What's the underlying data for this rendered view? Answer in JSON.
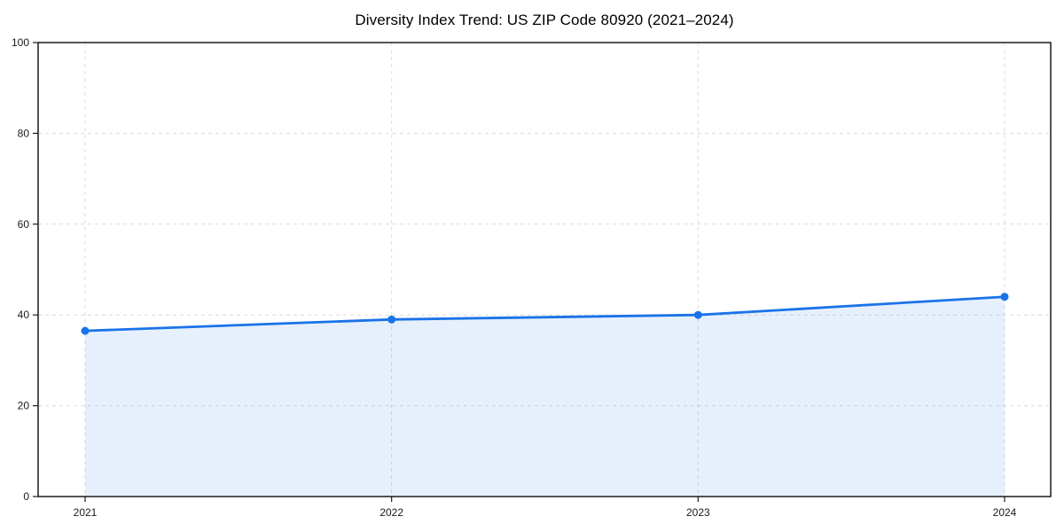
{
  "chart_data": {
    "type": "line",
    "title": "Diversity Index Trend: US ZIP Code 80920 (2021–2024)",
    "categories": [
      "2021",
      "2022",
      "2023",
      "2024"
    ],
    "series": [
      {
        "name": "Diversity Index",
        "values": [
          36.5,
          39,
          40,
          44
        ]
      }
    ],
    "xlabel": "",
    "ylabel": "",
    "ylim": [
      0,
      100
    ],
    "yticks": [
      0,
      20,
      40,
      60,
      80,
      100
    ],
    "grid": true,
    "grid_style": "dashed",
    "legend_position": "none",
    "line_color": "#1a73e8",
    "area_fill_color": "rgba(26,115,232,0.11)",
    "grid_color": "#dcdcdc",
    "spine_color": "#1a1a1a",
    "tick_label_color": "#1a1a1a",
    "marker": "circle"
  }
}
